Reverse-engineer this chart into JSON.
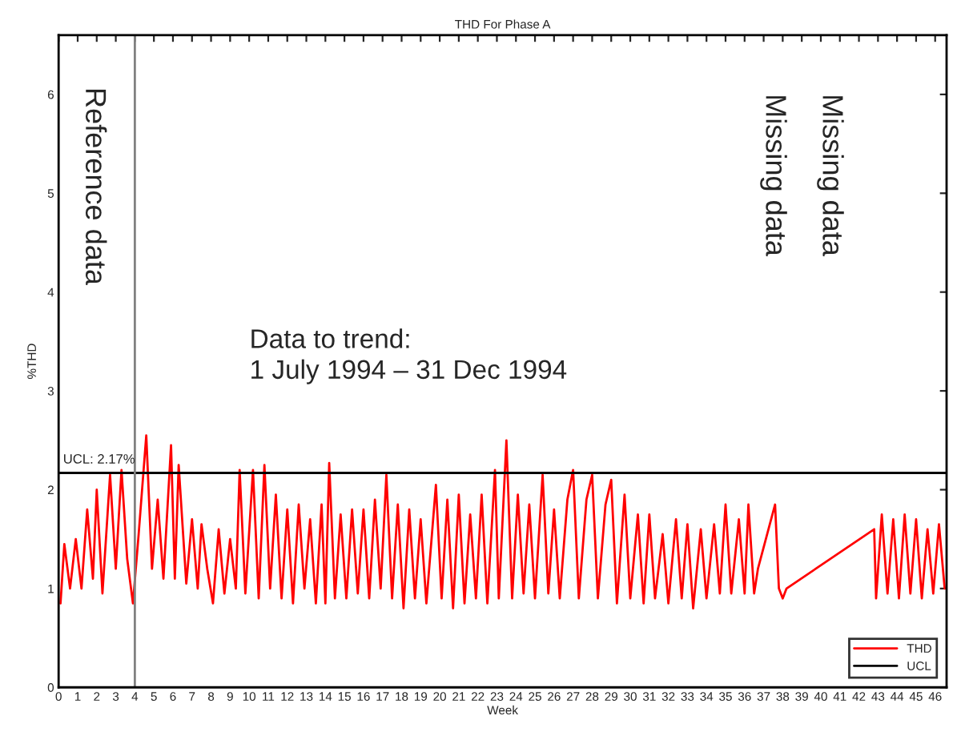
{
  "chart_data": {
    "type": "line",
    "title": "THD For Phase A",
    "xlabel": "Week",
    "ylabel": "%THD",
    "xlim": [
      0,
      46.6
    ],
    "xticks": [
      0,
      1,
      2,
      3,
      4,
      5,
      6,
      7,
      8,
      9,
      10,
      11,
      12,
      13,
      14,
      15,
      16,
      17,
      18,
      19,
      20,
      21,
      22,
      23,
      24,
      25,
      26,
      27,
      28,
      29,
      30,
      31,
      32,
      33,
      34,
      35,
      36,
      37,
      38,
      39,
      40,
      41,
      42,
      43,
      44,
      45,
      46
    ],
    "ylim": [
      0,
      6.6
    ],
    "yticks": [
      0,
      1,
      2,
      3,
      4,
      5,
      6
    ],
    "grid": false,
    "legend": "bottom right",
    "series": [
      {
        "name": "THD",
        "color": "#ff0000",
        "x": [
          0.1,
          0.3,
          0.6,
          0.9,
          1.2,
          1.5,
          1.8,
          2.0,
          2.3,
          2.7,
          3.0,
          3.3,
          3.6,
          3.9,
          4.2,
          4.6,
          4.9,
          5.2,
          5.5,
          5.9,
          6.1,
          6.3,
          6.7,
          7.0,
          7.3,
          7.5,
          7.8,
          8.1,
          8.4,
          8.7,
          9.0,
          9.3,
          9.5,
          9.8,
          10.2,
          10.5,
          10.8,
          11.1,
          11.4,
          11.7,
          12.0,
          12.3,
          12.6,
          12.9,
          13.2,
          13.5,
          13.8,
          14.0,
          14.2,
          14.5,
          14.8,
          15.1,
          15.4,
          15.7,
          16.0,
          16.3,
          16.6,
          16.9,
          17.2,
          17.5,
          17.8,
          18.1,
          18.4,
          18.7,
          19.0,
          19.3,
          19.8,
          20.1,
          20.4,
          20.7,
          21.0,
          21.3,
          21.6,
          21.9,
          22.2,
          22.5,
          22.9,
          23.1,
          23.5,
          23.8,
          24.1,
          24.4,
          24.7,
          25.0,
          25.4,
          25.7,
          26.0,
          26.3,
          26.7,
          27.0,
          27.3,
          27.7,
          28.0,
          28.3,
          28.7,
          29.0,
          29.3,
          29.7,
          30.0,
          30.4,
          30.7,
          31.0,
          31.3,
          31.7,
          32.0,
          32.4,
          32.7,
          33.0,
          33.3,
          33.7,
          34.0,
          34.4,
          34.7,
          35.0,
          35.3,
          35.7,
          36.0,
          36.2,
          36.5,
          36.7,
          37.6,
          37.8,
          38.0,
          38.2,
          42.8,
          42.9,
          43.2,
          43.5,
          43.8,
          44.1,
          44.4,
          44.7,
          45.0,
          45.3,
          45.6,
          45.9,
          46.2,
          46.5
        ],
        "values": [
          0.85,
          1.45,
          1.0,
          1.5,
          1.0,
          1.8,
          1.1,
          2.0,
          0.95,
          2.15,
          1.2,
          2.2,
          1.3,
          0.85,
          1.55,
          2.55,
          1.2,
          1.9,
          1.1,
          2.45,
          1.1,
          2.25,
          1.05,
          1.7,
          1.0,
          1.65,
          1.2,
          0.85,
          1.6,
          0.95,
          1.5,
          1.0,
          2.2,
          0.95,
          2.2,
          0.9,
          2.25,
          1.0,
          1.95,
          0.9,
          1.8,
          0.85,
          1.85,
          1.0,
          1.7,
          0.85,
          1.85,
          0.85,
          2.27,
          0.9,
          1.75,
          0.9,
          1.8,
          0.95,
          1.8,
          0.9,
          1.9,
          1.0,
          2.15,
          0.9,
          1.85,
          0.8,
          1.8,
          0.9,
          1.7,
          0.85,
          2.05,
          0.9,
          1.9,
          0.8,
          1.95,
          0.85,
          1.75,
          0.9,
          1.95,
          0.85,
          2.2,
          0.9,
          2.5,
          0.9,
          1.95,
          0.95,
          1.85,
          0.9,
          2.15,
          0.95,
          1.8,
          0.9,
          1.9,
          2.2,
          0.9,
          1.9,
          2.15,
          0.9,
          1.85,
          2.1,
          0.85,
          1.95,
          0.9,
          1.75,
          0.85,
          1.75,
          0.9,
          1.55,
          0.85,
          1.7,
          0.9,
          1.65,
          0.8,
          1.6,
          0.9,
          1.65,
          0.95,
          1.85,
          0.95,
          1.7,
          0.95,
          1.85,
          0.95,
          1.2,
          1.85,
          1.0,
          0.9,
          1.0,
          1.6,
          0.9,
          1.75,
          0.95,
          1.7,
          0.9,
          1.75,
          0.95,
          1.7,
          0.9,
          1.6,
          0.95,
          1.65,
          1.0
        ]
      },
      {
        "name": "UCL",
        "color": "#000000",
        "x": [
          0,
          46.6
        ],
        "values": [
          2.17,
          2.17
        ]
      }
    ],
    "ref_lines": [
      {
        "axis": "x",
        "value": 4,
        "color": "#808080"
      }
    ],
    "annotations": [
      {
        "text": "UCL: 2.17%",
        "x": 0,
        "y": 2.17
      },
      "Reference data",
      "Data to trend:\n1 July 1994 – 31 Dec 1994",
      "Missing data",
      "Missing data"
    ]
  }
}
